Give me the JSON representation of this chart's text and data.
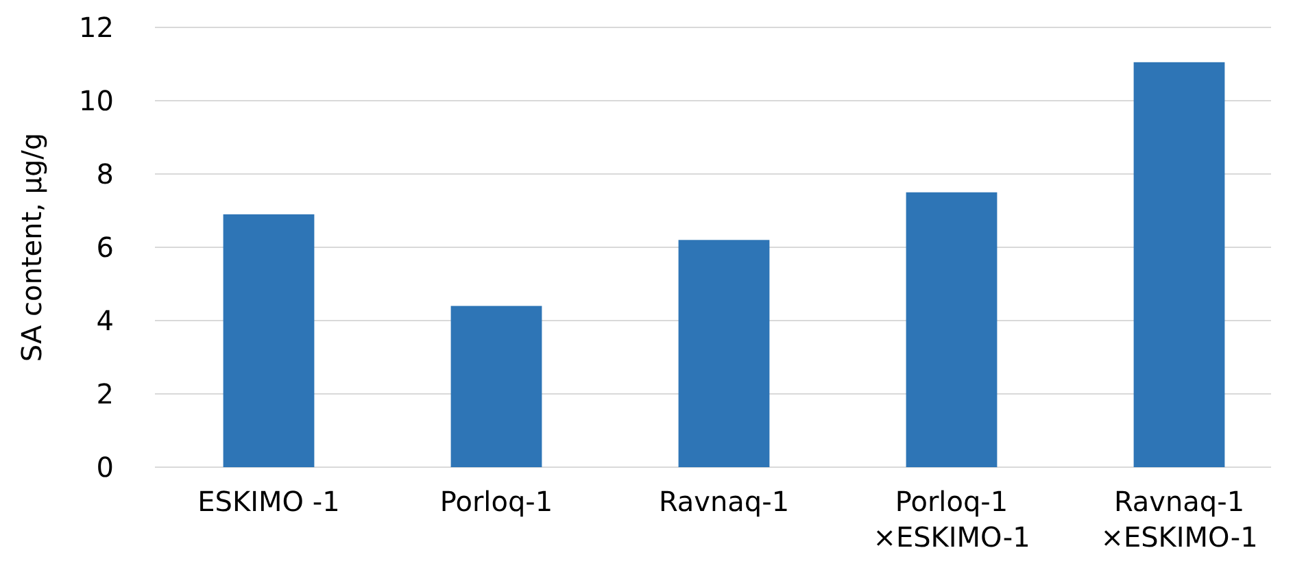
{
  "chart_data": {
    "type": "bar",
    "ylabel": "SA content, µg/g",
    "categories": [
      "ESKIMO -1",
      "Porloq-1",
      "Ravnaq-1",
      "Porloq-1\n×ESKIMO-1",
      "Ravnaq-1\n×ESKIMO-1"
    ],
    "values": [
      6.9,
      4.4,
      6.2,
      7.5,
      11.05
    ],
    "color": "#2e75b6",
    "ylim": [
      0,
      12
    ],
    "yticks": [
      0,
      2,
      4,
      6,
      8,
      10,
      12
    ],
    "grid": "y"
  }
}
